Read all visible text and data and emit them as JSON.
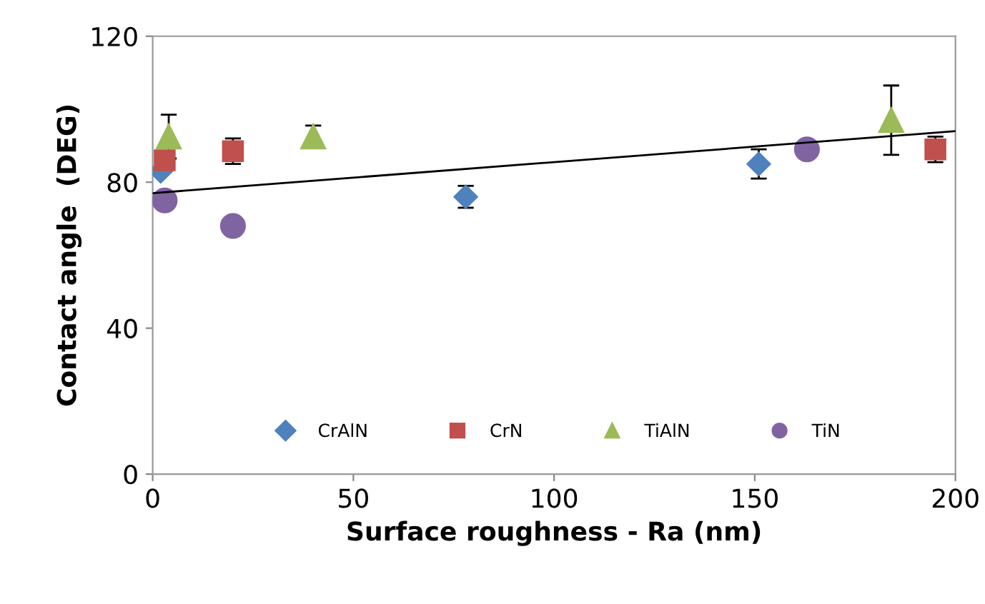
{
  "chart_data": {
    "type": "scatter",
    "xlabel": "Surface roughness - Ra (nm)",
    "ylabel": "Contact angle  (DEG)",
    "xlim": [
      0,
      200
    ],
    "xticks": [
      0,
      50,
      100,
      150,
      200
    ],
    "ylim": [
      0,
      120
    ],
    "yticks": [
      0,
      40,
      80,
      120
    ],
    "grid": false,
    "legend": "bottom",
    "series": [
      {
        "name": "CrAlN",
        "color": "#4f81bd",
        "marker": "diamond",
        "x": [
          2,
          78,
          151
        ],
        "values": [
          83,
          76,
          85
        ],
        "errors": [
          null,
          3,
          4
        ]
      },
      {
        "name": "CrN",
        "color": "#c0504d",
        "marker": "square",
        "x": [
          3,
          20,
          195
        ],
        "values": [
          86,
          88.5,
          89
        ],
        "errors": [
          null,
          3.5,
          3.5
        ]
      },
      {
        "name": "TiAlN",
        "color": "#9bbb59",
        "marker": "triangle",
        "x": [
          4,
          40,
          184
        ],
        "values": [
          92.5,
          92.5,
          97
        ],
        "errors": [
          6,
          3,
          9.5
        ]
      },
      {
        "name": "TiN",
        "color": "#8064a2",
        "marker": "circle",
        "x": [
          3,
          20,
          163
        ],
        "values": [
          75,
          68,
          89
        ],
        "errors": [
          null,
          null,
          2
        ]
      },
      {
        "type": "line",
        "color": "#000000",
        "marker": "none",
        "x": [
          0,
          200
        ],
        "values": [
          77,
          94
        ]
      }
    ]
  }
}
